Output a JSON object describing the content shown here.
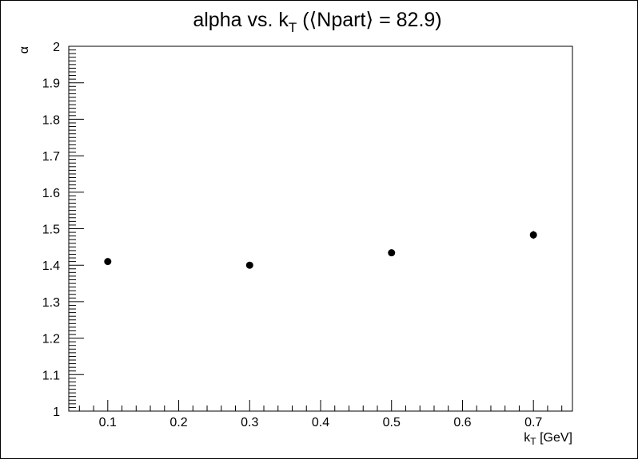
{
  "chart_data": {
    "type": "scatter",
    "title": {
      "main": "alpha vs. k",
      "main_sub": "T",
      "rest": " (⟨Npart⟩ = 82.9)"
    },
    "xlabel": {
      "main": "k",
      "sub": "T",
      "rest": " [GeV]"
    },
    "ylabel": "α",
    "xlim": [
      0.045,
      0.755
    ],
    "ylim": [
      1.0,
      2.0
    ],
    "x_major_ticks": [
      0.1,
      0.2,
      0.3,
      0.4,
      0.5,
      0.6,
      0.7
    ],
    "x_tick_labels": [
      "0.1",
      "0.2",
      "0.3",
      "0.4",
      "0.5",
      "0.6",
      "0.7"
    ],
    "y_major_ticks": [
      1.0,
      1.1,
      1.2,
      1.3,
      1.4,
      1.5,
      1.6,
      1.7,
      1.8,
      1.9,
      2.0
    ],
    "y_tick_labels": [
      "1",
      "1.1",
      "1.2",
      "1.3",
      "1.4",
      "1.5",
      "1.6",
      "1.7",
      "1.8",
      "1.9",
      "2"
    ],
    "grid": false,
    "series": [
      {
        "x": [
          0.1,
          0.3,
          0.5,
          0.7
        ],
        "y": [
          1.41,
          1.4,
          1.434,
          1.483
        ],
        "yerr": [
          0.003,
          0.003,
          0.004,
          0.011
        ]
      }
    ],
    "marker_color": "#000000"
  }
}
